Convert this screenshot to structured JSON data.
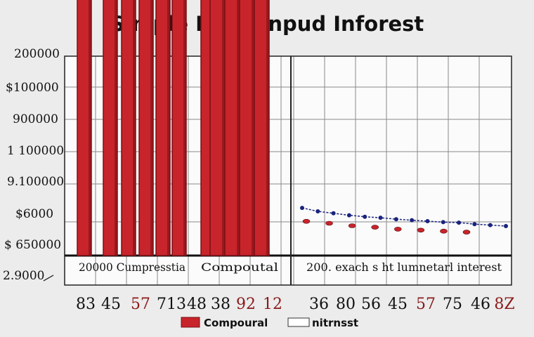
{
  "chart_data": {
    "type": "bar",
    "title": "Simple Ral Conpud Inforest",
    "y_tick_labels": [
      "200000",
      "$100000",
      "900000",
      "1 100000",
      "9.100000",
      "$6000",
      "$ 650000",
      "2.9000"
    ],
    "panels": [
      {
        "caption": "20000 Cumpresstia",
        "series_name": "Compound",
        "values": [
          126000,
          158000,
          142000,
          128000,
          110000,
          96000
        ]
      },
      {
        "caption": "Compoutal",
        "series_name": "Compound",
        "values": [
          480000,
          335000,
          258000,
          203000,
          185000
        ]
      },
      {
        "caption": "200. exach s ht lumnetarl interest",
        "series_name": "Interest",
        "line_values": [
          97,
          90,
          86,
          82,
          79,
          77,
          74,
          72,
          70,
          68,
          67,
          64,
          62,
          60
        ],
        "red_points": [
          84,
          80,
          75,
          72,
          68,
          66,
          64,
          62
        ]
      }
    ],
    "x_tick_labels": [
      {
        "text": "83",
        "color": "#111111"
      },
      {
        "text": "45",
        "color": "#111111"
      },
      {
        "text": "57",
        "color": "#8b1a1a"
      },
      {
        "text": "713",
        "color": "#111111"
      },
      {
        "text": "48",
        "color": "#111111"
      },
      {
        "text": "38",
        "color": "#111111"
      },
      {
        "text": "92",
        "color": "#8b1a1a"
      },
      {
        "text": "12",
        "color": "#8b1a1a"
      },
      {
        "text": "36",
        "color": "#111111"
      },
      {
        "text": "80",
        "color": "#111111"
      },
      {
        "text": "56",
        "color": "#111111"
      },
      {
        "text": "45",
        "color": "#111111"
      },
      {
        "text": "57",
        "color": "#8b1a1a"
      },
      {
        "text": "75",
        "color": "#111111"
      },
      {
        "text": "46",
        "color": "#111111"
      },
      {
        "text": "8Z",
        "color": "#8b1a1a"
      }
    ],
    "legend": [
      {
        "label": "Compoural",
        "color": "#c8242b",
        "style": "filled"
      },
      {
        "label": "nitrnsst",
        "color": "#ffffff",
        "style": "outline"
      }
    ],
    "legend_position": "bottom-center",
    "grid": true,
    "colors": {
      "bar": "#c8242b",
      "bar_dark": "#7a1014",
      "line": "#1a237e",
      "point": "#c8242b"
    }
  }
}
